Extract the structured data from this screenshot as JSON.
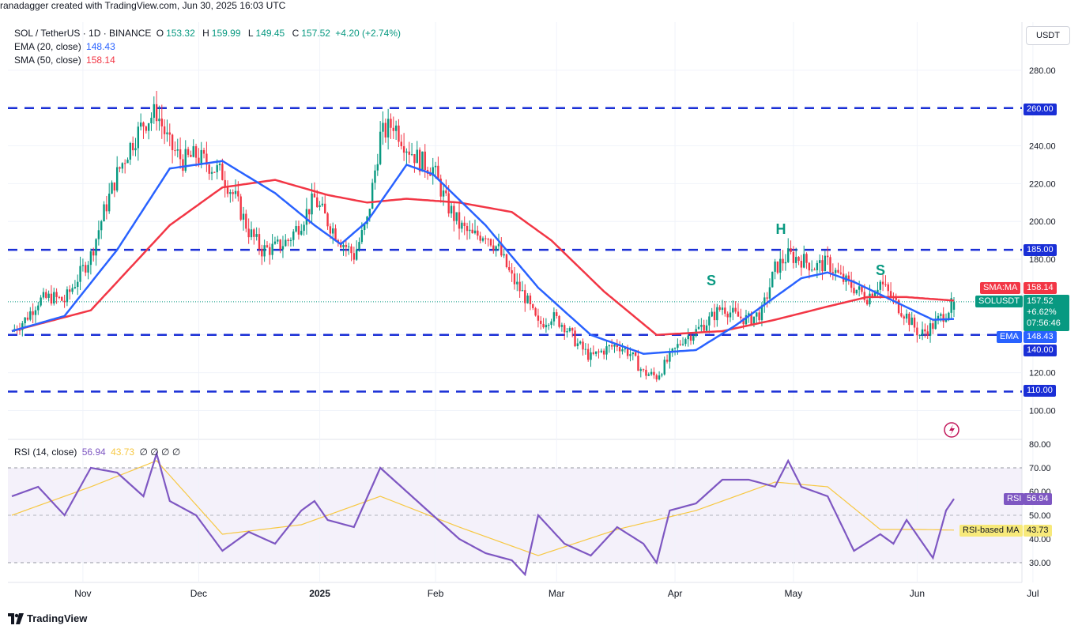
{
  "header": {
    "credit": "ranadagger created with TradingView.com, Jun 30, 2025 16:03 UTC"
  },
  "legend": {
    "symbol": "SOL / TetherUS · 1D · BINANCE",
    "o_label": "O",
    "o": "153.32",
    "h_label": "H",
    "h": "159.99",
    "l_label": "L",
    "l": "149.45",
    "c_label": "C",
    "c": "157.52",
    "change": "+4.20 (+2.74%)",
    "ema_label": "EMA (20, close)",
    "ema_value": "148.43",
    "sma_label": "SMA (50, close)",
    "sma_value": "158.14"
  },
  "unit": "USDT",
  "footer": {
    "brand": "TradingView"
  },
  "colors": {
    "up": "#089981",
    "down": "#f23645",
    "ema": "#2962ff",
    "sma": "#f23645",
    "rsi": "#7e57c2",
    "rsi_ma": "#f7c843",
    "level": "#1a2fd6"
  },
  "annotations": {
    "left_shoulder": "S",
    "head": "H",
    "right_shoulder": "S"
  },
  "price_tags": {
    "sma": {
      "name": "SMA:MA",
      "value": "158.14"
    },
    "last": {
      "name": "SOLUSDT",
      "value": "157.52",
      "change": "+6.62%",
      "countdown": "07:56:46"
    },
    "ema": {
      "name": "EMA",
      "value": "148.43"
    },
    "lvl260": "260.00",
    "lvl185": "185.00",
    "lvl140": "140.00",
    "lvl110": "110.00"
  },
  "rsi_legend": {
    "label": "RSI (14, close)",
    "value": "56.94",
    "ma_value": "43.73",
    "zeros": "∅ ∅ ∅ ∅"
  },
  "rsi_tags": {
    "rsi_name": "RSI",
    "rsi_value": "56.94",
    "ma_name": "RSI-based MA",
    "ma_value": "43.73"
  },
  "chart_data": [
    {
      "type": "candlestick",
      "title": "SOL / TetherUS · 1D · BINANCE",
      "ylim": [
        91,
        300
      ],
      "y_ticks": [
        "100.00",
        "120.00",
        "140.00",
        "180.00",
        "200.00",
        "220.00",
        "240.00",
        "280.00"
      ],
      "x_ticks": [
        "Nov",
        "Dec",
        "2025",
        "Feb",
        "Mar",
        "Apr",
        "May",
        "Jun",
        "Jul"
      ],
      "horizontal_levels": [
        260,
        185,
        140,
        110
      ],
      "close_series_approx": [
        [
          0,
          142
        ],
        [
          5,
          148
        ],
        [
          10,
          158
        ],
        [
          15,
          160
        ],
        [
          20,
          158
        ],
        [
          25,
          170
        ],
        [
          30,
          182
        ],
        [
          35,
          205
        ],
        [
          40,
          225
        ],
        [
          45,
          240
        ],
        [
          50,
          252
        ],
        [
          55,
          258
        ],
        [
          60,
          240
        ],
        [
          65,
          232
        ],
        [
          70,
          235
        ],
        [
          75,
          230
        ],
        [
          80,
          225
        ],
        [
          85,
          212
        ],
        [
          90,
          195
        ],
        [
          95,
          185
        ],
        [
          100,
          186
        ],
        [
          105,
          190
        ],
        [
          110,
          200
        ],
        [
          115,
          212
        ],
        [
          120,
          200
        ],
        [
          125,
          190
        ],
        [
          130,
          182
        ],
        [
          135,
          200
        ],
        [
          140,
          245
        ],
        [
          145,
          252
        ],
        [
          150,
          240
        ],
        [
          155,
          232
        ],
        [
          160,
          228
        ],
        [
          165,
          210
        ],
        [
          170,
          198
        ],
        [
          175,
          192
        ],
        [
          180,
          194
        ],
        [
          185,
          185
        ],
        [
          190,
          170
        ],
        [
          195,
          160
        ],
        [
          200,
          145
        ],
        [
          205,
          150
        ],
        [
          210,
          145
        ],
        [
          215,
          135
        ],
        [
          220,
          128
        ],
        [
          225,
          132
        ],
        [
          230,
          135
        ],
        [
          235,
          130
        ],
        [
          240,
          120
        ],
        [
          245,
          118
        ],
        [
          250,
          128
        ],
        [
          255,
          138
        ],
        [
          260,
          142
        ],
        [
          265,
          148
        ],
        [
          270,
          155
        ],
        [
          275,
          150
        ],
        [
          280,
          148
        ],
        [
          285,
          152
        ],
        [
          290,
          175
        ],
        [
          295,
          182
        ],
        [
          300,
          180
        ],
        [
          305,
          176
        ],
        [
          310,
          178
        ],
        [
          315,
          170
        ],
        [
          320,
          165
        ],
        [
          325,
          160
        ],
        [
          330,
          168
        ],
        [
          335,
          158
        ],
        [
          340,
          150
        ],
        [
          345,
          140
        ],
        [
          350,
          145
        ],
        [
          355,
          152
        ],
        [
          358,
          157.52
        ]
      ],
      "ema20_approx": [
        [
          0,
          142
        ],
        [
          20,
          150
        ],
        [
          40,
          185
        ],
        [
          60,
          228
        ],
        [
          80,
          232
        ],
        [
          100,
          215
        ],
        [
          115,
          198
        ],
        [
          125,
          188
        ],
        [
          135,
          200
        ],
        [
          150,
          230
        ],
        [
          160,
          225
        ],
        [
          180,
          198
        ],
        [
          200,
          165
        ],
        [
          220,
          140
        ],
        [
          240,
          130
        ],
        [
          260,
          132
        ],
        [
          275,
          145
        ],
        [
          290,
          160
        ],
        [
          300,
          170
        ],
        [
          310,
          173
        ],
        [
          320,
          168
        ],
        [
          335,
          158
        ],
        [
          350,
          148
        ],
        [
          358,
          148.43
        ]
      ],
      "sma50_approx": [
        [
          0,
          142
        ],
        [
          30,
          153
        ],
        [
          60,
          198
        ],
        [
          80,
          218
        ],
        [
          100,
          222
        ],
        [
          120,
          214
        ],
        [
          135,
          210
        ],
        [
          150,
          212
        ],
        [
          170,
          210
        ],
        [
          190,
          205
        ],
        [
          205,
          190
        ],
        [
          225,
          163
        ],
        [
          245,
          140
        ],
        [
          270,
          142
        ],
        [
          290,
          148
        ],
        [
          310,
          155
        ],
        [
          325,
          160
        ],
        [
          340,
          160
        ],
        [
          358,
          158.14
        ]
      ],
      "pattern_labels": [
        "S",
        "H",
        "S"
      ]
    },
    {
      "type": "line",
      "title": "RSI (14, close)",
      "ylim": [
        25,
        82
      ],
      "y_ticks": [
        "80.00",
        "70.00",
        "60.00",
        "50.00",
        "40.00",
        "30.00"
      ],
      "band": [
        30,
        70
      ],
      "series": [
        {
          "name": "RSI",
          "points": [
            [
              0,
              58
            ],
            [
              10,
              62
            ],
            [
              20,
              50
            ],
            [
              30,
              70
            ],
            [
              40,
              68
            ],
            [
              50,
              58
            ],
            [
              55,
              76
            ],
            [
              60,
              56
            ],
            [
              70,
              50
            ],
            [
              80,
              35
            ],
            [
              90,
              43
            ],
            [
              100,
              38
            ],
            [
              110,
              52
            ],
            [
              115,
              56
            ],
            [
              120,
              48
            ],
            [
              130,
              45
            ],
            [
              140,
              70
            ],
            [
              150,
              60
            ],
            [
              160,
              50
            ],
            [
              170,
              40
            ],
            [
              180,
              34
            ],
            [
              190,
              31
            ],
            [
              195,
              25
            ],
            [
              200,
              50
            ],
            [
              210,
              38
            ],
            [
              220,
              33
            ],
            [
              230,
              45
            ],
            [
              240,
              38
            ],
            [
              245,
              30
            ],
            [
              250,
              52
            ],
            [
              260,
              55
            ],
            [
              270,
              65
            ],
            [
              280,
              65
            ],
            [
              290,
              62
            ],
            [
              295,
              73
            ],
            [
              300,
              62
            ],
            [
              310,
              58
            ],
            [
              320,
              35
            ],
            [
              330,
              42
            ],
            [
              335,
              38
            ],
            [
              340,
              48
            ],
            [
              345,
              40
            ],
            [
              350,
              32
            ],
            [
              355,
              52
            ],
            [
              358,
              56.94
            ]
          ]
        },
        {
          "name": "RSI-based MA",
          "points": [
            [
              0,
              50
            ],
            [
              30,
              62
            ],
            [
              55,
              73
            ],
            [
              80,
              42
            ],
            [
              110,
              46
            ],
            [
              140,
              58
            ],
            [
              170,
              45
            ],
            [
              200,
              33
            ],
            [
              230,
              44
            ],
            [
              260,
              52
            ],
            [
              290,
              64
            ],
            [
              310,
              62
            ],
            [
              330,
              44
            ],
            [
              345,
              44
            ],
            [
              358,
              43.73
            ]
          ]
        }
      ]
    }
  ]
}
